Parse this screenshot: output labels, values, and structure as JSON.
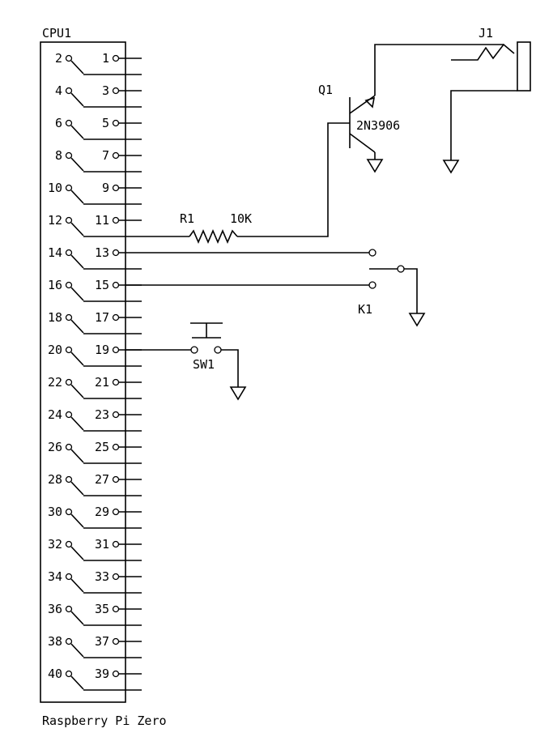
{
  "cpu": {
    "ref": "CPU1",
    "name": "Raspberry Pi Zero",
    "pins": [
      {
        "odd": "1",
        "even": "2"
      },
      {
        "odd": "3",
        "even": "4"
      },
      {
        "odd": "5",
        "even": "6"
      },
      {
        "odd": "7",
        "even": "8"
      },
      {
        "odd": "9",
        "even": "10"
      },
      {
        "odd": "11",
        "even": "12"
      },
      {
        "odd": "13",
        "even": "14"
      },
      {
        "odd": "15",
        "even": "16"
      },
      {
        "odd": "17",
        "even": "18"
      },
      {
        "odd": "19",
        "even": "20"
      },
      {
        "odd": "21",
        "even": "22"
      },
      {
        "odd": "23",
        "even": "24"
      },
      {
        "odd": "25",
        "even": "26"
      },
      {
        "odd": "27",
        "even": "28"
      },
      {
        "odd": "29",
        "even": "30"
      },
      {
        "odd": "31",
        "even": "32"
      },
      {
        "odd": "33",
        "even": "34"
      },
      {
        "odd": "35",
        "even": "36"
      },
      {
        "odd": "37",
        "even": "38"
      },
      {
        "odd": "39",
        "even": "40"
      }
    ]
  },
  "resistor": {
    "ref": "R1",
    "value": "10K"
  },
  "transistor": {
    "ref": "Q1",
    "value": "2N3906"
  },
  "jack": {
    "ref": "J1"
  },
  "relay": {
    "ref": "K1"
  },
  "switch": {
    "ref": "SW1"
  }
}
